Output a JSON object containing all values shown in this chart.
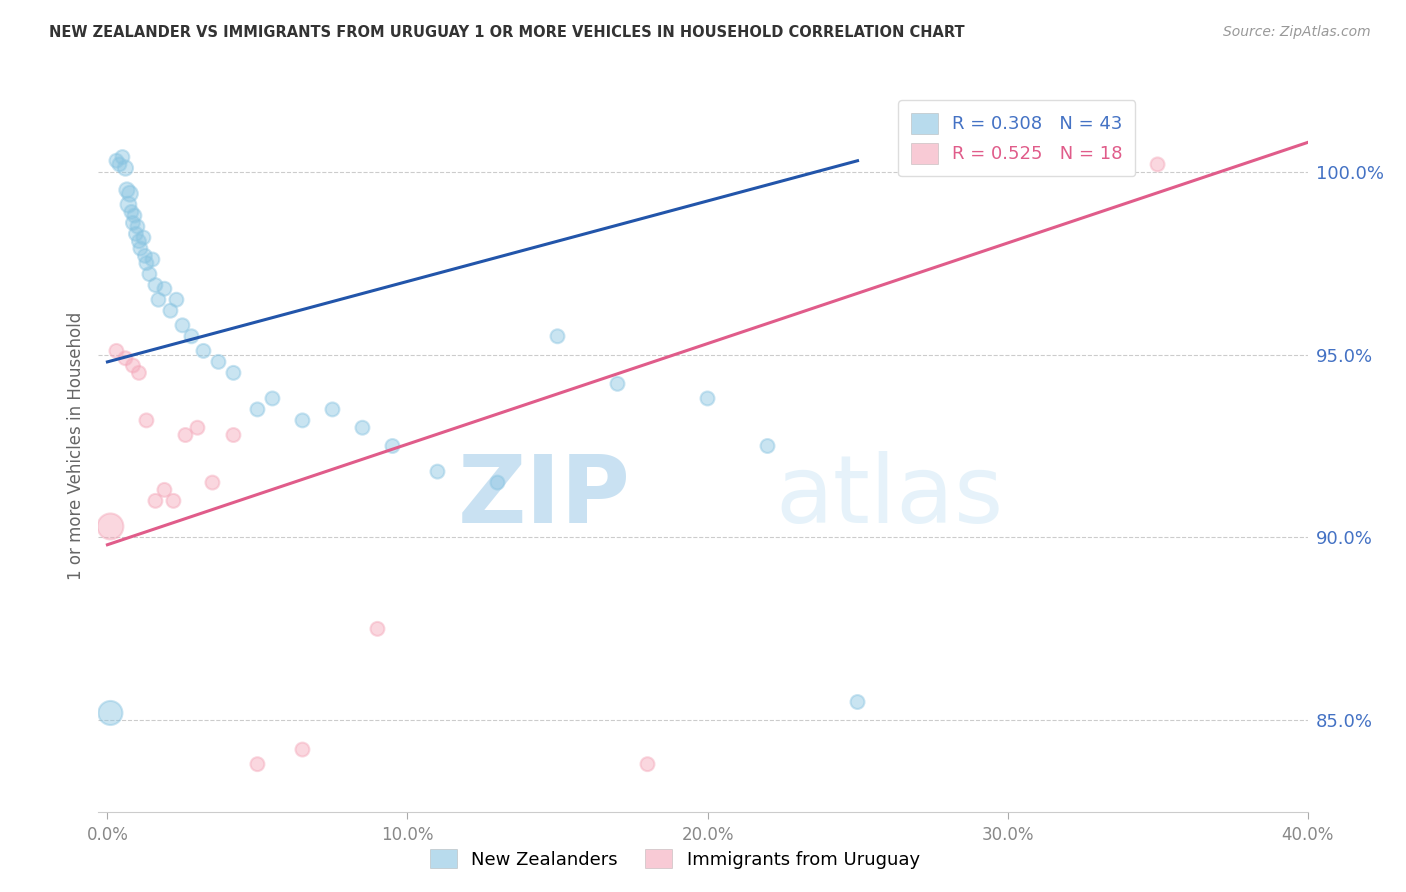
{
  "title": "NEW ZEALANDER VS IMMIGRANTS FROM URUGUAY 1 OR MORE VEHICLES IN HOUSEHOLD CORRELATION CHART",
  "source": "Source: ZipAtlas.com",
  "ylabel": "1 or more Vehicles in Household",
  "watermark_zip": "ZIP",
  "watermark_atlas": "atlas",
  "blue_label": "New Zealanders",
  "pink_label": "Immigrants from Uruguay",
  "blue_R": "R = 0.308",
  "blue_N": "N = 43",
  "pink_R": "R = 0.525",
  "pink_N": "N = 18",
  "blue_color": "#89c4e1",
  "pink_color": "#f4a7b9",
  "blue_line_color": "#2255aa",
  "pink_line_color": "#e05c8a",
  "text_blue": "#4472c4",
  "text_pink": "#e05c8a",
  "x_min": -0.3,
  "x_max": 40.0,
  "y_min": 82.5,
  "y_max": 102.5,
  "yticks": [
    85.0,
    90.0,
    95.0,
    100.0
  ],
  "xticks": [
    0.0,
    10.0,
    20.0,
    30.0,
    40.0
  ],
  "blue_x": [
    0.1,
    0.3,
    0.4,
    0.5,
    0.6,
    0.65,
    0.7,
    0.75,
    0.8,
    0.85,
    0.9,
    0.95,
    1.0,
    1.05,
    1.1,
    1.2,
    1.25,
    1.3,
    1.4,
    1.5,
    1.6,
    1.7,
    1.9,
    2.1,
    2.3,
    2.5,
    2.8,
    3.2,
    3.7,
    4.2,
    5.0,
    5.5,
    6.5,
    7.5,
    8.5,
    9.5,
    11.0,
    13.0,
    15.0,
    17.0,
    20.0,
    22.0,
    25.0
  ],
  "blue_y": [
    85.2,
    100.3,
    100.2,
    100.4,
    100.1,
    99.5,
    99.1,
    99.4,
    98.9,
    98.6,
    98.8,
    98.3,
    98.5,
    98.1,
    97.9,
    98.2,
    97.7,
    97.5,
    97.2,
    97.6,
    96.9,
    96.5,
    96.8,
    96.2,
    96.5,
    95.8,
    95.5,
    95.1,
    94.8,
    94.5,
    93.5,
    93.8,
    93.2,
    93.5,
    93.0,
    92.5,
    91.8,
    91.5,
    95.5,
    94.2,
    93.8,
    92.5,
    85.5
  ],
  "blue_sizes": [
    300,
    100,
    100,
    100,
    120,
    120,
    130,
    130,
    100,
    100,
    100,
    100,
    100,
    100,
    100,
    100,
    100,
    100,
    100,
    100,
    100,
    100,
    100,
    100,
    100,
    100,
    100,
    100,
    100,
    100,
    100,
    100,
    100,
    100,
    100,
    100,
    100,
    100,
    100,
    100,
    100,
    100,
    100
  ],
  "pink_x": [
    0.1,
    0.3,
    0.6,
    0.85,
    1.05,
    1.3,
    1.6,
    1.9,
    2.2,
    2.6,
    3.0,
    3.5,
    4.2,
    5.0,
    6.5,
    9.0,
    18.0,
    35.0
  ],
  "pink_y": [
    90.3,
    95.1,
    94.9,
    94.7,
    94.5,
    93.2,
    91.0,
    91.3,
    91.0,
    92.8,
    93.0,
    91.5,
    92.8,
    83.8,
    84.2,
    87.5,
    83.8,
    100.2
  ],
  "pink_sizes": [
    350,
    100,
    100,
    100,
    100,
    100,
    100,
    100,
    100,
    100,
    100,
    100,
    100,
    100,
    100,
    100,
    100,
    100
  ],
  "blue_line_x0": 0.0,
  "blue_line_x1": 25.0,
  "blue_line_y0": 94.8,
  "blue_line_y1": 100.3,
  "pink_line_x0": 0.0,
  "pink_line_x1": 40.0,
  "pink_line_y0": 89.8,
  "pink_line_y1": 100.8
}
